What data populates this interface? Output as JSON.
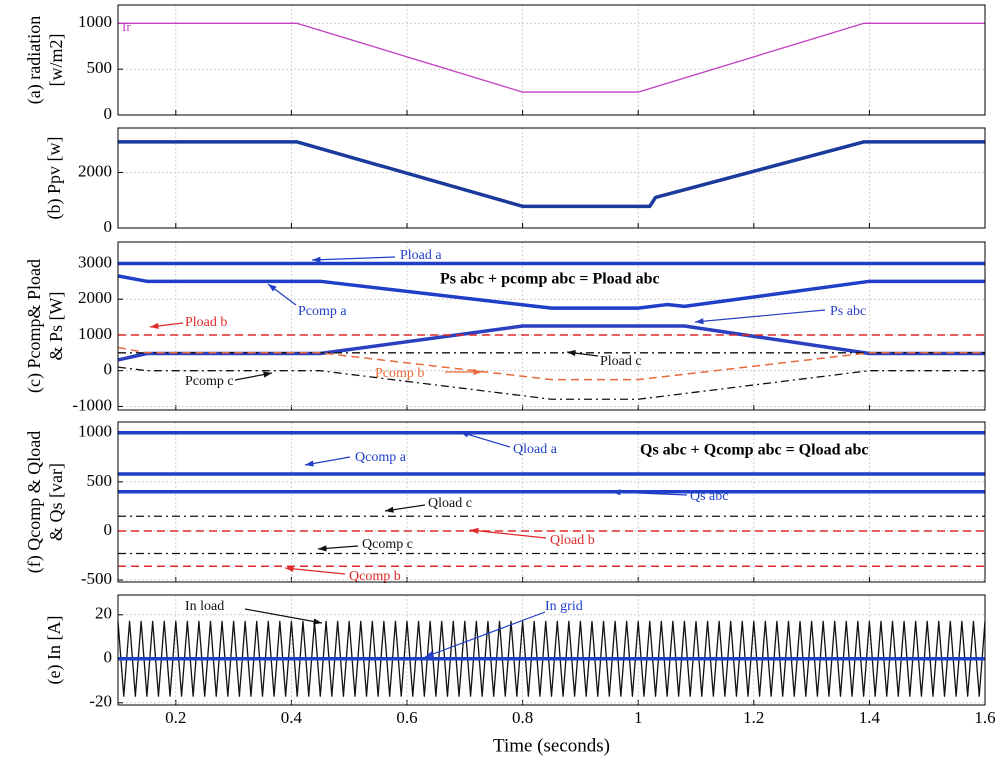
{
  "chart_data": [
    {
      "type": "line",
      "ylabel": [
        "(a)  radiation",
        "[w/m2]"
      ],
      "xlim": [
        0.1,
        1.6
      ],
      "xticks": [
        0.2,
        0.4,
        0.6,
        0.8,
        1,
        1.2,
        1.4,
        1.6
      ],
      "ylim": [
        0,
        1200
      ],
      "yticks": [
        0,
        500,
        1000
      ],
      "grid": true,
      "series": [
        {
          "name": "Ir",
          "color": "#c040c0",
          "style": "solid",
          "x": [
            0.1,
            0.41,
            0.8,
            1.0,
            1.39,
            1.6
          ],
          "values": [
            1000,
            1000,
            250,
            250,
            1000,
            1000
          ]
        }
      ]
    },
    {
      "type": "line",
      "ylabel": [
        "(b) Ppv [w]"
      ],
      "xlim": [
        0.1,
        1.6
      ],
      "xticks": [
        0.2,
        0.4,
        0.6,
        0.8,
        1,
        1.2,
        1.4,
        1.6
      ],
      "ylim": [
        0,
        3600
      ],
      "yticks": [
        0,
        2000
      ],
      "grid": true,
      "series": [
        {
          "name": "Ppv",
          "color": "#1a3a9c",
          "style": "thick",
          "x": [
            0.1,
            0.41,
            0.8,
            1.02,
            1.03,
            1.39,
            1.6
          ],
          "values": [
            3100,
            3100,
            780,
            780,
            1100,
            3100,
            3100
          ]
        }
      ]
    },
    {
      "type": "line",
      "ylabel": [
        "(c) Pcomp& Pload",
        "& Ps [W]"
      ],
      "xlim": [
        0.1,
        1.6
      ],
      "xticks": [
        0.2,
        0.4,
        0.6,
        0.8,
        1,
        1.2,
        1.4,
        1.6
      ],
      "ylim": [
        -1100,
        3600
      ],
      "yticks": [
        -1000,
        0,
        1000,
        2000,
        3000
      ],
      "grid": true,
      "annotation": "Ps abc + pcomp abc = Pload abc",
      "series": [
        {
          "name": "Pload a",
          "color": "#1f3fc8",
          "style": "thick",
          "x": [
            0.1,
            1.6
          ],
          "values": [
            3000,
            3000
          ]
        },
        {
          "name": "Pcomp a",
          "color": "#1f3fc8",
          "style": "thick",
          "x": [
            0.1,
            0.15,
            0.45,
            0.85,
            1,
            1.05,
            1.08,
            1.4,
            1.6
          ],
          "values": [
            2650,
            2500,
            2500,
            1750,
            1750,
            1850,
            1800,
            2500,
            2500
          ]
        },
        {
          "name": "Ps abc",
          "color": "#2a40c0",
          "style": "thick",
          "x": [
            0.1,
            0.15,
            0.45,
            0.8,
            1.08,
            1.4,
            1.6
          ],
          "values": [
            300,
            480,
            480,
            1250,
            1250,
            480,
            480
          ]
        },
        {
          "name": "Pload b",
          "color": "#e02828",
          "style": "dashed",
          "x": [
            0.1,
            1.6
          ],
          "values": [
            1000,
            1000
          ]
        },
        {
          "name": "Pload c",
          "color": "#111111",
          "style": "dashdot",
          "x": [
            0.1,
            1.6
          ],
          "values": [
            500,
            500
          ]
        },
        {
          "name": "Pcomp b",
          "color": "#e86a3a",
          "style": "dashed",
          "x": [
            0.1,
            0.15,
            0.45,
            0.85,
            1,
            1.4,
            1.6
          ],
          "values": [
            650,
            500,
            500,
            -250,
            -250,
            500,
            500
          ]
        },
        {
          "name": "Pcomp c",
          "color": "#111111",
          "style": "dashdot",
          "x": [
            0.1,
            0.15,
            0.45,
            0.85,
            1,
            1.05,
            1.4,
            1.6
          ],
          "values": [
            100,
            0,
            0,
            -800,
            -800,
            -700,
            0,
            0
          ]
        }
      ]
    },
    {
      "type": "line",
      "ylabel": [
        "(f) Qcomp & Qload",
        "& Qs [var]"
      ],
      "xlim": [
        0.1,
        1.6
      ],
      "xticks": [
        0.2,
        0.4,
        0.6,
        0.8,
        1,
        1.2,
        1.4,
        1.6
      ],
      "ylim": [
        -520,
        1110
      ],
      "yticks": [
        -500,
        0,
        500,
        1000
      ],
      "grid": true,
      "annotation": "Qs abc + Qcomp abc = Qload abc",
      "series": [
        {
          "name": "Qload a",
          "color": "#1f3fc8",
          "style": "thick",
          "x": [
            0.1,
            1.6
          ],
          "values": [
            1000,
            1000
          ]
        },
        {
          "name": "Qcomp a",
          "color": "#1f3fc8",
          "style": "thick",
          "x": [
            0.1,
            1.6
          ],
          "values": [
            580,
            580
          ]
        },
        {
          "name": "Qs abc",
          "color": "#1f3fc8",
          "style": "thick",
          "x": [
            0.1,
            1.6
          ],
          "values": [
            400,
            400
          ]
        },
        {
          "name": "Qload c",
          "color": "#111111",
          "style": "dashdot",
          "x": [
            0.1,
            1.6
          ],
          "values": [
            150,
            150
          ]
        },
        {
          "name": "Qload b",
          "color": "#e02828",
          "style": "dashed",
          "x": [
            0.1,
            1.6
          ],
          "values": [
            0,
            0
          ]
        },
        {
          "name": "Qcomp c",
          "color": "#111111",
          "style": "dashdot",
          "x": [
            0.1,
            1.6
          ],
          "values": [
            -230,
            -230
          ]
        },
        {
          "name": "Qcomp b",
          "color": "#e02828",
          "style": "dashed",
          "x": [
            0.1,
            1.6
          ],
          "values": [
            -360,
            -360
          ]
        }
      ]
    },
    {
      "type": "line",
      "ylabel": [
        "(e)   In [A]"
      ],
      "xlabel": "Time (seconds)",
      "xlim": [
        0.1,
        1.6
      ],
      "xticks": [
        0.2,
        0.4,
        0.6,
        0.8,
        1,
        1.2,
        1.4,
        1.6
      ],
      "ylim": [
        -21,
        29
      ],
      "yticks": [
        -20,
        0,
        20
      ],
      "grid": true,
      "series": [
        {
          "name": "In load",
          "color": "#111111",
          "style": "solid",
          "x": [
            0.1,
            0.11,
            0.12,
            0.13,
            0.14,
            0.15,
            0.16,
            0.17,
            0.18,
            0.19,
            0.2,
            0.21,
            0.22,
            0.23,
            0.24,
            0.25,
            0.26,
            0.27,
            0.28,
            0.29,
            0.3,
            0.31,
            0.32,
            0.33,
            0.34,
            0.35,
            0.36,
            0.37,
            0.38,
            0.39,
            0.4,
            0.41,
            0.42,
            0.43,
            0.44,
            0.45,
            0.46,
            0.47,
            0.48,
            0.49,
            0.5,
            0.51,
            0.52,
            0.53,
            0.54,
            0.55,
            0.56,
            0.57,
            0.58,
            0.59,
            0.6,
            0.61,
            0.62,
            0.63,
            0.64,
            0.65,
            0.66,
            0.67,
            0.68,
            0.69,
            0.7,
            0.71,
            0.72,
            0.73,
            0.74,
            0.75,
            0.76,
            0.77,
            0.78,
            0.79,
            0.8,
            0.81,
            0.82,
            0.83,
            0.84,
            0.85,
            0.86,
            0.87,
            0.88,
            0.89,
            0.9,
            0.91,
            0.92,
            0.93,
            0.94,
            0.95,
            0.96,
            0.97,
            0.98,
            0.99,
            1,
            1.01,
            1.02,
            1.03,
            1.04,
            1.05,
            1.06,
            1.07,
            1.08,
            1.09,
            1.1,
            1.11,
            1.12,
            1.13,
            1.14,
            1.15,
            1.16,
            1.17,
            1.18,
            1.19,
            1.2,
            1.21,
            1.22,
            1.23,
            1.24,
            1.25,
            1.26,
            1.27,
            1.28,
            1.29,
            1.3,
            1.31,
            1.32,
            1.33,
            1.34,
            1.35,
            1.36,
            1.37,
            1.38,
            1.39,
            1.4,
            1.41,
            1.42,
            1.43,
            1.44,
            1.45,
            1.46,
            1.47,
            1.48,
            1.49,
            1.5,
            1.51,
            1.52,
            1.53,
            1.54,
            1.55,
            1.56,
            1.57,
            1.58,
            1.59,
            1.6
          ],
          "values": [
            17,
            -17,
            17,
            -17,
            17,
            -17,
            17,
            -17,
            17,
            -17,
            17,
            -17,
            17,
            -17,
            17,
            -17,
            17,
            -17,
            17,
            -17,
            17,
            -17,
            17,
            -17,
            17,
            -17,
            17,
            -17,
            17,
            -17,
            17,
            -17,
            17,
            -17,
            17,
            -17,
            17,
            -17,
            17,
            -17,
            17,
            -17,
            17,
            -17,
            17,
            -17,
            17,
            -17,
            17,
            -17,
            17,
            -17,
            17,
            -17,
            17,
            -17,
            17,
            -17,
            17,
            -17,
            17,
            -17,
            17,
            -17,
            17,
            -17,
            17,
            -17,
            17,
            -17,
            17,
            -17,
            17,
            -17,
            17,
            -17,
            17,
            -17,
            17,
            -17,
            17,
            -17,
            17,
            -17,
            17,
            -17,
            17,
            -17,
            17,
            -17,
            17,
            -17,
            17,
            -17,
            17,
            -17,
            17,
            -17,
            17,
            -17,
            17,
            -17,
            17,
            -17,
            17,
            -17,
            17,
            -17,
            17,
            -17,
            17,
            -17,
            17,
            -17,
            17,
            -17,
            17,
            -17,
            17,
            -17,
            17,
            -17,
            17,
            -17,
            17,
            -17,
            17,
            -17,
            17,
            -17,
            17,
            -17,
            17,
            -17,
            17,
            -17,
            17,
            -17,
            17,
            -17,
            17,
            -17,
            17,
            -17,
            17,
            -17,
            17,
            -17,
            17,
            -17,
            17
          ]
        },
        {
          "name": "In grid",
          "color": "#1f3fc8",
          "style": "thick",
          "x": [
            0.1,
            1.6
          ],
          "values": [
            0,
            0
          ]
        }
      ]
    }
  ]
}
